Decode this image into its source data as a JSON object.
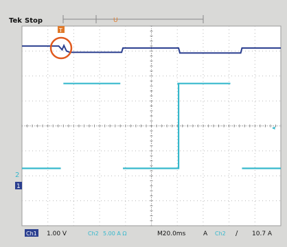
{
  "header": {
    "brand": "Tek",
    "status": "Stop"
  },
  "markers": {
    "trigger_marker": "T",
    "cursor_label": "U"
  },
  "channel_markers": {
    "ch2": "2",
    "ch1": "1"
  },
  "status_bar": {
    "ch1_tag": "Ch1",
    "ch1_scale": "1.00 V",
    "ch2_label": "Ch2",
    "ch2_scale": "5.00 A Ω",
    "timebase": "M20.0ms",
    "trigger_mode": "A",
    "trigger_source": "Ch2",
    "trigger_slope": "/",
    "trigger_level": "10.7 A"
  },
  "colors": {
    "screen_bg": "#ffffff",
    "ch1_trace": "#2b3f8f",
    "ch2_trace": "#35b8cc",
    "grid": "#b8b8b8",
    "marker": "#e07a2a",
    "highlight_circle": "#e05a1e",
    "status_tag_bg": "#2b3f8f"
  },
  "chart_data": {
    "type": "line",
    "xlim": [
      0,
      10
    ],
    "ylim": [
      0,
      8
    ],
    "grid": true,
    "series": [
      {
        "channel": "ch1",
        "x": [
          0,
          1.42,
          1.55,
          1.62,
          1.72,
          1.85,
          1.95,
          3.85,
          3.9,
          5.8,
          6.05,
          6.1,
          8.45,
          8.5,
          10
        ],
        "y": [
          7.2,
          7.2,
          7.05,
          7.22,
          7.0,
          6.95,
          6.95,
          6.95,
          7.12,
          7.12,
          7.12,
          6.92,
          6.92,
          7.12,
          7.12
        ]
      },
      {
        "channel": "ch2",
        "x": [
          1.6,
          3.8
        ],
        "y": [
          5.7,
          5.7
        ]
      },
      {
        "channel": "ch2",
        "x": [
          6.0,
          8.05
        ],
        "y": [
          5.7,
          5.7
        ]
      },
      {
        "channel": "ch2",
        "x": [
          0,
          1.5
        ],
        "y": [
          2.3,
          2.3
        ]
      },
      {
        "channel": "ch2",
        "x": [
          3.9,
          5.95,
          6.05,
          6.05
        ],
        "y": [
          2.3,
          2.3,
          2.3,
          5.7
        ]
      },
      {
        "channel": "ch2",
        "x": [
          8.5,
          10
        ],
        "y": [
          2.3,
          2.3
        ]
      }
    ]
  }
}
